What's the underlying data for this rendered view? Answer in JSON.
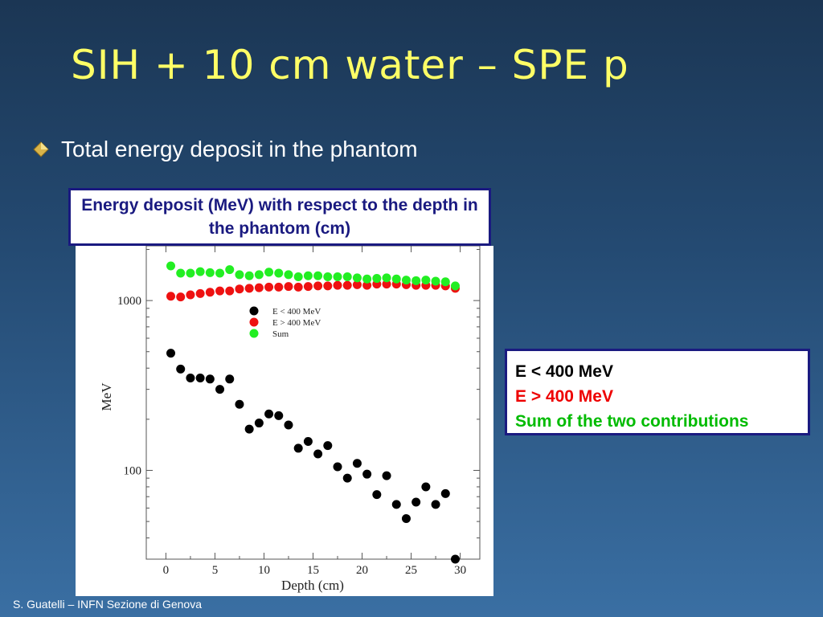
{
  "slide": {
    "title": "SIH + 10 cm water – SPE p",
    "bullet": "Total energy deposit in the phantom",
    "caption": "Energy deposit  (MeV) with respect to the depth in the phantom (cm)",
    "footer": "S. Guatelli – INFN Sezione di Genova"
  },
  "side_legend": {
    "line1": "E < 400 MeV",
    "line2": "E > 400 MeV",
    "line3": "Sum of the two contributions",
    "colors": {
      "line1": "#000000",
      "line2": "#ee0000",
      "line3": "#00bb00"
    }
  },
  "chart_data": {
    "type": "scatter",
    "xlabel": "Depth (cm)",
    "ylabel": "MeV",
    "xlim": [
      -2,
      32
    ],
    "ylim": [
      30,
      2100
    ],
    "yscale": "log",
    "xticks": [
      0,
      5,
      10,
      15,
      20,
      25,
      30
    ],
    "yticks_labeled": [
      100,
      1000
    ],
    "grid": false,
    "legend_position": "upper-middle",
    "series": [
      {
        "name": "E < 400 MeV",
        "color": "#000000",
        "x": [
          0.5,
          1.5,
          2.5,
          3.5,
          4.5,
          5.5,
          6.5,
          7.5,
          8.5,
          9.5,
          10.5,
          11.5,
          12.5,
          13.5,
          14.5,
          15.5,
          16.5,
          17.5,
          18.5,
          19.5,
          20.5,
          21.5,
          22.5,
          23.5,
          24.5,
          25.5,
          26.5,
          27.5,
          28.5,
          29.5
        ],
        "values": [
          490,
          395,
          350,
          350,
          345,
          300,
          345,
          245,
          175,
          190,
          215,
          210,
          185,
          135,
          148,
          125,
          140,
          105,
          90,
          110,
          95,
          72,
          93,
          63,
          52,
          65,
          80,
          63,
          73,
          30
        ]
      },
      {
        "name": "E > 400 MeV",
        "color": "#ee1111",
        "x": [
          0.5,
          1.5,
          2.5,
          3.5,
          4.5,
          5.5,
          6.5,
          7.5,
          8.5,
          9.5,
          10.5,
          11.5,
          12.5,
          13.5,
          14.5,
          15.5,
          16.5,
          17.5,
          18.5,
          19.5,
          20.5,
          21.5,
          22.5,
          23.5,
          24.5,
          25.5,
          26.5,
          27.5,
          28.5,
          29.5
        ],
        "values": [
          1060,
          1050,
          1080,
          1100,
          1120,
          1140,
          1140,
          1170,
          1180,
          1190,
          1200,
          1200,
          1210,
          1200,
          1210,
          1220,
          1220,
          1230,
          1230,
          1240,
          1230,
          1250,
          1250,
          1250,
          1240,
          1230,
          1230,
          1230,
          1220,
          1180
        ]
      },
      {
        "name": "Sum",
        "color": "#22ee22",
        "x": [
          0.5,
          1.5,
          2.5,
          3.5,
          4.5,
          5.5,
          6.5,
          7.5,
          8.5,
          9.5,
          10.5,
          11.5,
          12.5,
          13.5,
          14.5,
          15.5,
          16.5,
          17.5,
          18.5,
          19.5,
          20.5,
          21.5,
          22.5,
          23.5,
          24.5,
          25.5,
          26.5,
          27.5,
          28.5,
          29.5
        ],
        "values": [
          1600,
          1450,
          1450,
          1480,
          1460,
          1450,
          1520,
          1420,
          1400,
          1420,
          1470,
          1450,
          1420,
          1380,
          1400,
          1400,
          1380,
          1380,
          1380,
          1360,
          1340,
          1350,
          1360,
          1340,
          1320,
          1310,
          1320,
          1300,
          1290,
          1220
        ]
      }
    ]
  }
}
